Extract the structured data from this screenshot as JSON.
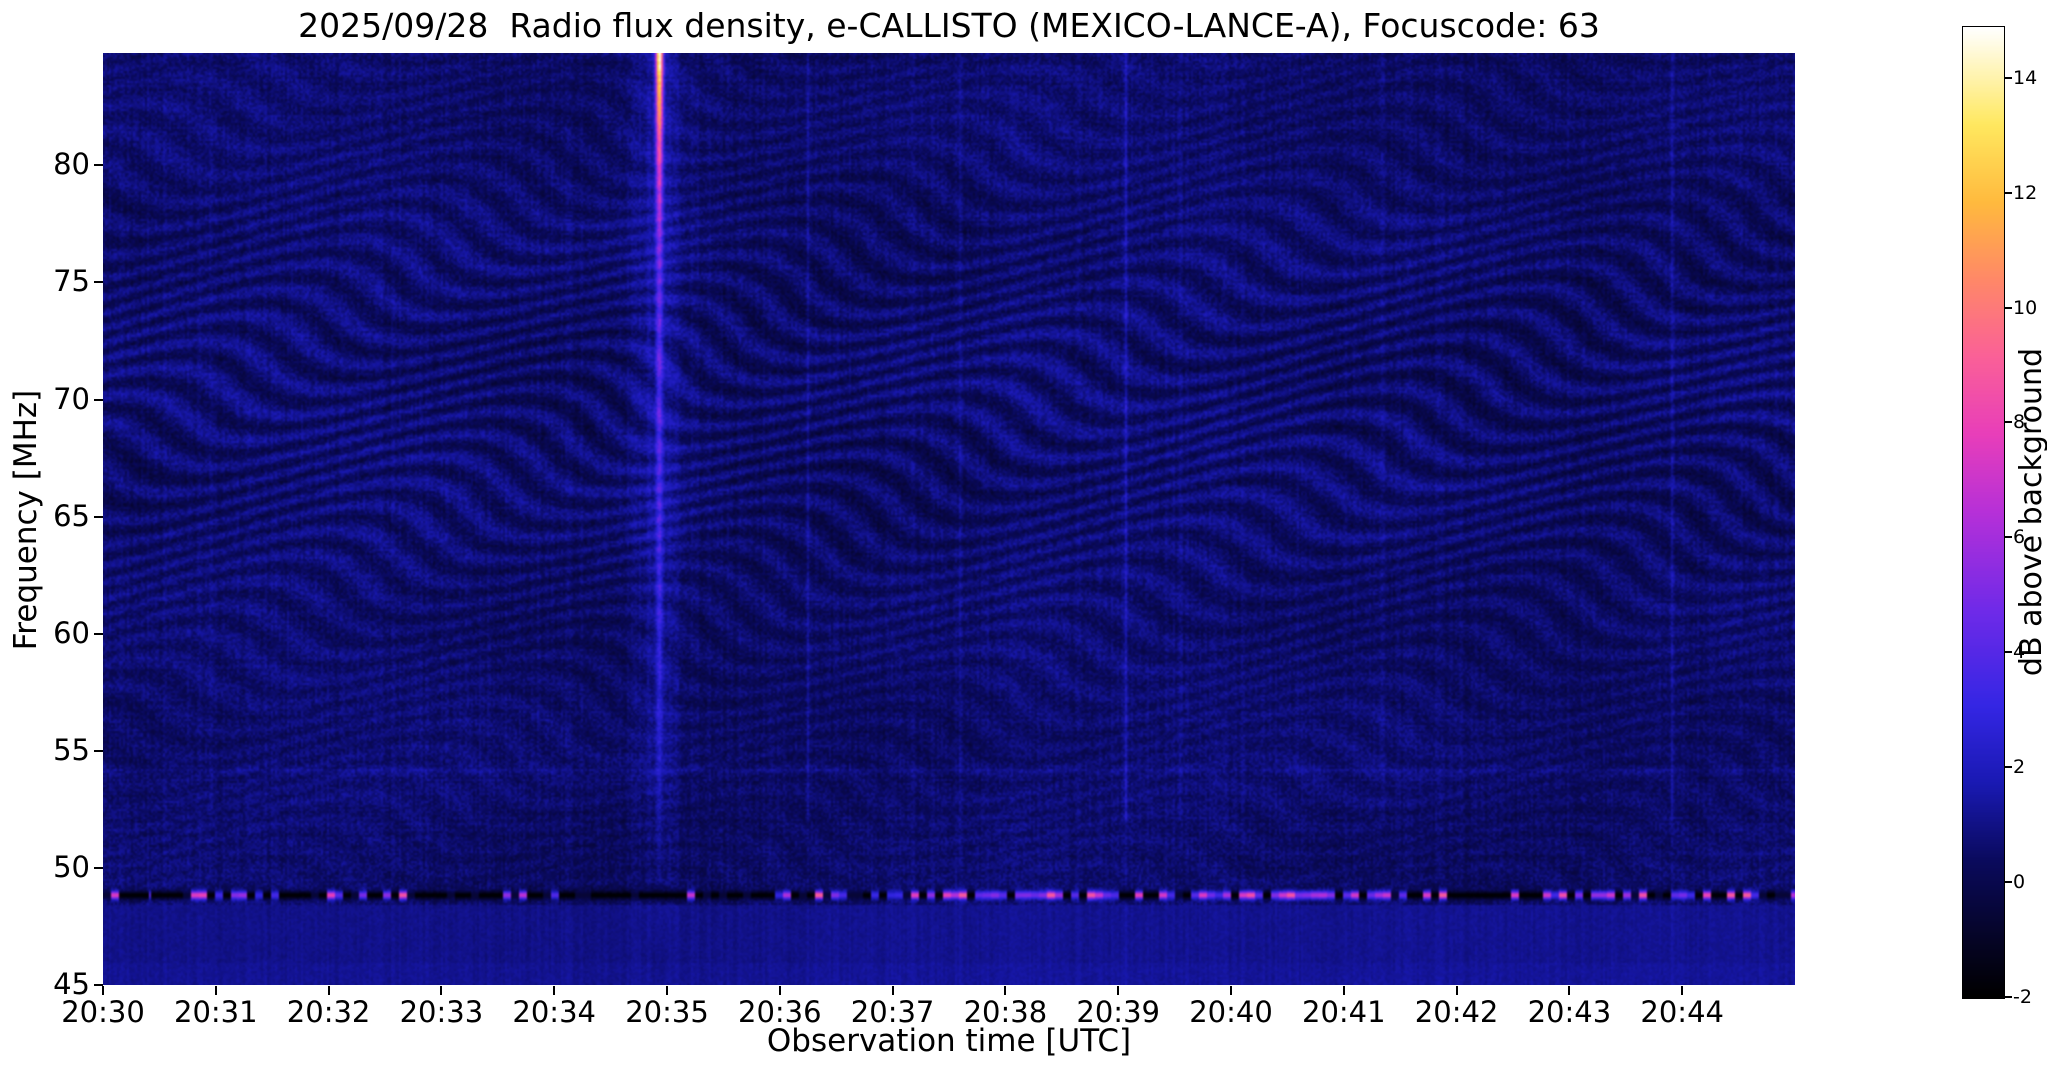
{
  "chart_data": {
    "type": "heatmap",
    "title": "2025/09/28  Radio flux density, e-CALLISTO (MEXICO-LANCE-A), Focuscode: 63",
    "xlabel": "Observation time [UTC]",
    "ylabel": "Frequency [MHz]",
    "x_ticks": [
      "20:30",
      "20:31",
      "20:32",
      "20:33",
      "20:34",
      "20:35",
      "20:36",
      "20:37",
      "20:38",
      "20:39",
      "20:40",
      "20:41",
      "20:42",
      "20:43",
      "20:44"
    ],
    "x_start_utc": "20:30",
    "x_span_minutes": 15,
    "y_ticks": [
      80,
      75,
      70,
      65,
      60,
      55,
      50,
      45
    ],
    "y_range_mhz": [
      45,
      84.8
    ],
    "grid": false,
    "legend": "colorbar-right",
    "colorbar": {
      "label": "dB above background",
      "ticks": [
        14,
        12,
        10,
        8,
        6,
        4,
        2,
        0,
        -2
      ],
      "range": [
        -2,
        15
      ],
      "colormap": "gnuplot2-like (black-blue-magenta-pink-orange-yellow-white)",
      "stops": [
        [
          0.0,
          [
            0,
            0,
            0
          ]
        ],
        [
          0.07,
          [
            6,
            5,
            45
          ]
        ],
        [
          0.14,
          [
            10,
            10,
            92
          ]
        ],
        [
          0.22,
          [
            25,
            25,
            178
          ]
        ],
        [
          0.3,
          [
            52,
            38,
            228
          ]
        ],
        [
          0.4,
          [
            112,
            42,
            232
          ]
        ],
        [
          0.5,
          [
            182,
            48,
            216
          ]
        ],
        [
          0.58,
          [
            232,
            62,
            186
          ]
        ],
        [
          0.66,
          [
            250,
            96,
            152
          ]
        ],
        [
          0.74,
          [
            255,
            136,
            104
          ]
        ],
        [
          0.82,
          [
            255,
            186,
            62
          ]
        ],
        [
          0.9,
          [
            255,
            232,
            95
          ]
        ],
        [
          1.0,
          [
            255,
            255,
            255
          ]
        ]
      ]
    },
    "features": [
      {
        "kind": "background",
        "mean_db": 0.6,
        "description": "quiet solar radio spectrum, dark blue (~0-1 dB) with wavy interference ripples strongest between 58 and 82 MHz"
      },
      {
        "kind": "burst",
        "t_min": 4.93,
        "time_utc": "20:35",
        "f_span_mhz": [
          48,
          84.8
        ],
        "peak_db": 13,
        "description": "narrow broadband vertical spike, brightest above 78 MHz, bluish halo around it"
      },
      {
        "kind": "rfi_band",
        "f_mhz": 48.8,
        "black_db": -2,
        "peak_db": 9.5,
        "clusters_min": [
          [
            0.4,
            1.5
          ],
          [
            6.2,
            11.6
          ],
          [
            12.7,
            15
          ]
        ],
        "description": "persistent horizontal RFI channel: black dropout dashes with pink/magenta bursts clustered near 20:31, 20:36-20:41 and 20:43-20:45"
      },
      {
        "kind": "weak_lines",
        "t_min": [
          0.95,
          6.25,
          7.6,
          9.07,
          9.55,
          11.35,
          13.92
        ],
        "peak_db": [
          0.4,
          0.9,
          0.4,
          1.2,
          0.5,
          0.6,
          0.8
        ],
        "description": "faint thin vertical lines (weak bursts/interference)"
      },
      {
        "kind": "hline",
        "f_mhz": 54.15,
        "db": 0.5,
        "description": "faint brighter horizontal line near 54 MHz"
      },
      {
        "kind": "bottom_band",
        "f_below_mhz": 48.4,
        "mean_db": 1.05,
        "description": "slightly brighter, smoother blue region below the RFI channel"
      }
    ]
  }
}
